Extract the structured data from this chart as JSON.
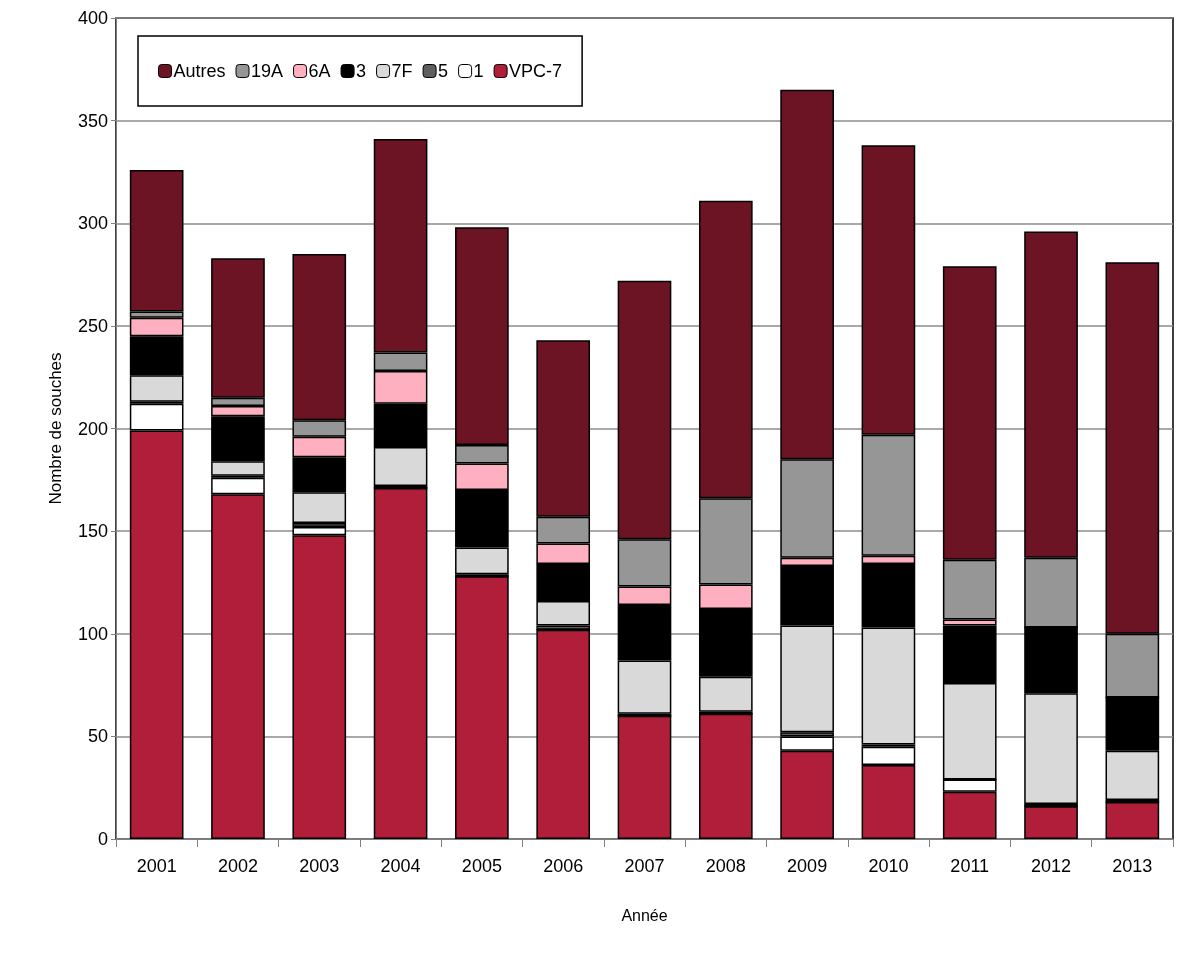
{
  "chart_data": {
    "type": "bar",
    "stacked": true,
    "xlabel": "Année",
    "ylabel": "Nombre de souches",
    "categories": [
      "2001",
      "2002",
      "2003",
      "2004",
      "2005",
      "2006",
      "2007",
      "2008",
      "2009",
      "2010",
      "2011",
      "2012",
      "2013"
    ],
    "series": [
      {
        "name": "VPC-7",
        "color": "#b11e3a",
        "values": [
          199,
          168,
          148,
          171,
          128,
          102,
          60,
          61,
          43,
          36,
          23,
          16,
          18
        ]
      },
      {
        "name": "1",
        "color": "#ffffff",
        "values": [
          13,
          8,
          4,
          0,
          0,
          0,
          0,
          0,
          7,
          9,
          6,
          0,
          0
        ]
      },
      {
        "name": "5",
        "color": "#5f5f5f",
        "values": [
          1,
          1,
          2,
          1,
          1,
          2,
          1,
          1,
          2,
          1,
          0,
          1,
          1
        ]
      },
      {
        "name": "7F",
        "color": "#d9d9d9",
        "values": [
          13,
          7,
          15,
          19,
          13,
          12,
          26,
          17,
          52,
          57,
          47,
          54,
          24
        ]
      },
      {
        "name": "3",
        "color": "#000000",
        "values": [
          19,
          22,
          17,
          21,
          28,
          18,
          27,
          33,
          29,
          31,
          28,
          32,
          26
        ]
      },
      {
        "name": "6A",
        "color": "#ffb0c0",
        "values": [
          9,
          5,
          10,
          16,
          13,
          10,
          9,
          12,
          4,
          4,
          3,
          0,
          0
        ]
      },
      {
        "name": "19A",
        "color": "#969696",
        "values": [
          3,
          4,
          8,
          9,
          9,
          13,
          23,
          42,
          48,
          59,
          29,
          34,
          31
        ]
      },
      {
        "name": "Autres",
        "color": "#6d1424",
        "values": [
          69,
          68,
          81,
          104,
          106,
          86,
          126,
          145,
          180,
          141,
          143,
          159,
          181
        ]
      }
    ],
    "ylim": [
      0,
      400
    ],
    "yticks": [
      0,
      50,
      100,
      150,
      200,
      250,
      300,
      350,
      400
    ],
    "grid": "y",
    "legend": "top left"
  }
}
